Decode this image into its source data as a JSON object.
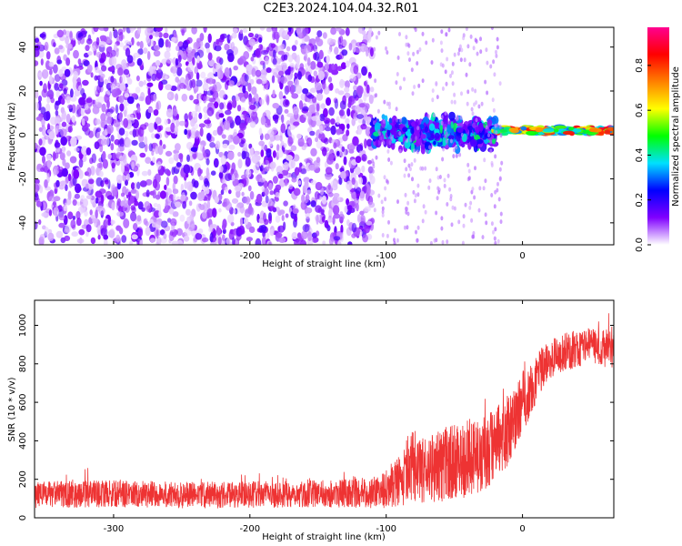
{
  "title": "C2E3.2024.104.04.32.R01",
  "chart_data": [
    {
      "type": "heatmap",
      "xlabel": "Height of straight line (km)",
      "ylabel": "Frequency (Hz)",
      "xlim": [
        -358,
        67
      ],
      "ylim": [
        -50,
        49
      ],
      "xticks": [
        -300,
        -200,
        -100,
        0
      ],
      "yticks": [
        -40,
        -20,
        0,
        20,
        40
      ],
      "grid": false,
      "description_regions": [
        {
          "x_range": [
            -358,
            -110
          ],
          "freq_spread": [
            -50,
            49
          ],
          "amplitude_range": [
            0.02,
            0.18
          ]
        },
        {
          "x_range": [
            -110,
            -20
          ],
          "freq_spread": [
            -8,
            10
          ],
          "amplitude_range": [
            0.1,
            0.45
          ]
        },
        {
          "x_range": [
            -20,
            67
          ],
          "freq_spread": [
            0,
            4
          ],
          "amplitude_range": [
            0.3,
            0.95
          ]
        }
      ],
      "colorbar": {
        "label": "Normalized spectral amplitude",
        "range": [
          0.0,
          0.97
        ],
        "ticks": [
          "0.0",
          "0.2",
          "0.4",
          "0.6",
          "0.8"
        ],
        "colors": [
          "#ffffff",
          "#8000ff",
          "#0000ff",
          "#00e0ff",
          "#00ff00",
          "#ffff00",
          "#ff8000",
          "#ff0000",
          "#ff0090"
        ]
      }
    },
    {
      "type": "line",
      "xlabel": "Height of straight line (km)",
      "ylabel": "SNR (10 * v/v)",
      "xlim": [
        -358,
        67
      ],
      "ylim": [
        0,
        1130
      ],
      "xticks": [
        -300,
        -200,
        -100,
        0
      ],
      "yticks": [
        0,
        200,
        400,
        600,
        800,
        1000
      ],
      "color": "#ee3333",
      "grid": false,
      "series": [
        {
          "x": [
            -358,
            -300,
            -250,
            -200,
            -150,
            -110,
            -100,
            -90,
            -80,
            -70,
            -60,
            -50,
            -40,
            -30,
            -20,
            -15,
            -10,
            -5,
            0,
            5,
            10,
            15,
            20,
            30,
            40,
            50,
            60,
            67
          ],
          "y": [
            120,
            125,
            118,
            120,
            125,
            130,
            150,
            200,
            230,
            250,
            270,
            290,
            310,
            330,
            370,
            420,
            460,
            520,
            600,
            650,
            720,
            780,
            820,
            860,
            880,
            900,
            880,
            870
          ],
          "y_spread": [
            70,
            70,
            70,
            70,
            70,
            80,
            100,
            140,
            160,
            180,
            190,
            200,
            200,
            220,
            200,
            190,
            180,
            170,
            160,
            150,
            130,
            110,
            100,
            100,
            100,
            100,
            100,
            100
          ]
        }
      ]
    }
  ]
}
